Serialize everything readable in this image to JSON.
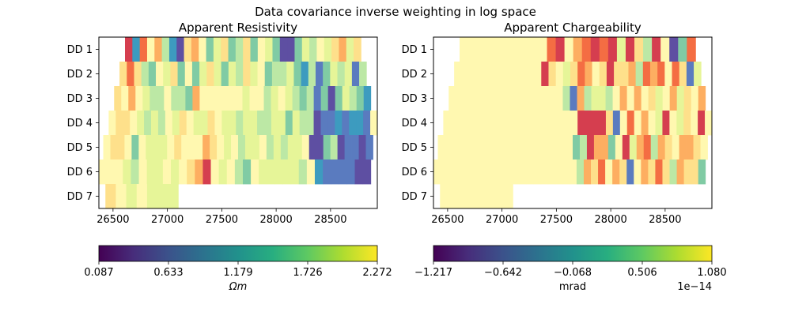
{
  "figure": {
    "title": "Data covariance inverse weighting in log space"
  },
  "chart_data": [
    {
      "type": "heatmap",
      "title": "Apparent Resistivity",
      "xlabel": "",
      "ylabel": "",
      "xlim": [
        26370,
        28930
      ],
      "x_ticks": [
        26500,
        27000,
        27500,
        28000,
        28500
      ],
      "x_tick_labels": [
        "26500",
        "27000",
        "27500",
        "28000",
        "28500"
      ],
      "y_tick_labels": [
        "DD 1",
        "DD 2",
        "DD 3",
        "DD 4",
        "DD 5",
        "DD 6",
        "DD 7"
      ],
      "grid": false,
      "colormap": "Spectral",
      "rows": [
        {
          "label": "DD 1",
          "x_start": 26610,
          "x_end": 28780,
          "values": [
            1,
            9,
            2,
            5,
            3,
            7,
            9,
            11,
            4,
            3,
            5,
            8,
            6,
            4,
            8,
            7,
            4,
            8,
            5,
            6,
            8,
            11,
            11,
            8,
            6,
            7,
            5,
            6,
            4,
            3,
            6,
            4
          ]
        },
        {
          "label": "DD 2",
          "x_start": 26560,
          "x_end": 28830,
          "values": [
            4,
            2,
            4,
            7,
            8,
            5,
            6,
            4,
            8,
            5,
            8,
            6,
            4,
            6,
            8,
            6,
            7,
            4,
            6,
            5,
            8,
            7,
            7,
            6,
            8,
            9,
            7,
            10,
            8,
            6,
            7,
            6,
            10,
            7
          ]
        },
        {
          "label": "DD 3",
          "x_start": 26510,
          "x_end": 28870,
          "values": [
            4,
            5,
            3,
            5,
            6,
            7,
            7,
            5,
            7,
            7,
            8,
            3,
            5,
            5,
            5,
            5,
            5,
            5,
            6,
            5,
            5,
            7,
            6,
            5,
            6,
            7,
            8,
            7,
            10,
            8,
            11,
            8,
            6,
            7,
            8,
            9
          ]
        },
        {
          "label": "DD 4",
          "x_start": 26460,
          "x_end": 28930,
          "values": [
            5,
            4,
            4,
            5,
            6,
            7,
            6,
            7,
            5,
            6,
            4,
            5,
            6,
            6,
            4,
            5,
            6,
            6,
            7,
            6,
            6,
            7,
            7,
            6,
            6,
            8,
            6,
            7,
            7,
            11,
            10,
            10,
            9,
            10,
            9,
            9,
            10,
            12
          ]
        },
        {
          "label": "DD 5",
          "x_start": 26410,
          "x_end": 28890,
          "values": [
            5,
            4,
            4,
            5,
            8,
            5,
            6,
            6,
            6,
            5,
            4,
            5,
            5,
            5,
            3,
            4,
            5,
            6,
            5,
            7,
            6,
            6,
            5,
            7,
            6,
            7,
            6,
            6,
            5,
            11,
            11,
            8,
            7,
            11,
            10,
            10,
            11,
            10
          ]
        },
        {
          "label": "DD 6",
          "x_start": 26370,
          "x_end": 28870,
          "values": [
            5,
            5,
            5,
            6,
            7,
            5,
            6,
            6,
            5,
            6,
            5,
            4,
            3,
            1,
            5,
            6,
            5,
            7,
            8,
            5,
            6,
            6,
            6,
            6,
            6,
            7,
            5,
            9,
            10,
            10,
            10,
            10,
            11,
            11
          ]
        },
        {
          "label": "DD 7",
          "x_start": 26430,
          "x_end": 27100,
          "values": [
            4,
            5,
            6,
            5,
            6,
            6,
            6
          ]
        }
      ]
    },
    {
      "type": "heatmap",
      "title": "Apparent Chargeability",
      "xlabel": "",
      "ylabel": "",
      "xlim": [
        26370,
        28930
      ],
      "x_ticks": [
        26500,
        27000,
        27500,
        28000,
        28500
      ],
      "x_tick_labels": [
        "26500",
        "27000",
        "27500",
        "28000",
        "28500"
      ],
      "y_tick_labels": [
        "DD 1",
        "DD 2",
        "DD 3",
        "DD 4",
        "DD 5",
        "DD 6",
        "DD 7"
      ],
      "grid": false,
      "colormap": "Spectral",
      "rows": [
        {
          "label": "DD 1",
          "x_start": 26610,
          "x_end": 28780,
          "values": [
            5,
            5,
            5,
            5,
            5,
            5,
            5,
            5,
            5,
            5,
            2,
            1,
            5,
            3,
            2,
            1,
            2,
            1,
            6,
            1,
            4,
            7,
            1,
            5,
            11,
            8,
            2
          ]
        },
        {
          "label": "DD 2",
          "x_start": 26560,
          "x_end": 28830,
          "values": [
            5,
            5,
            5,
            5,
            5,
            5,
            5,
            5,
            5,
            5,
            5,
            5,
            1,
            4,
            5,
            6,
            4,
            2,
            3,
            5,
            4,
            1,
            4,
            4,
            3,
            7,
            2,
            3,
            2,
            5,
            2,
            4,
            10,
            6
          ]
        },
        {
          "label": "DD 3",
          "x_start": 26510,
          "x_end": 28870,
          "values": [
            5,
            5,
            5,
            5,
            5,
            5,
            5,
            5,
            5,
            5,
            5,
            5,
            5,
            5,
            5,
            5,
            7,
            10,
            3,
            7,
            6,
            6,
            7,
            5,
            3,
            5,
            3,
            5,
            4,
            6,
            5,
            3,
            6,
            4,
            5,
            3
          ]
        },
        {
          "label": "DD 4",
          "x_start": 26460,
          "x_end": 28930,
          "values": [
            5,
            5,
            5,
            5,
            5,
            5,
            5,
            5,
            5,
            5,
            5,
            5,
            5,
            5,
            5,
            5,
            5,
            5,
            5,
            1,
            1,
            1,
            1,
            4,
            10,
            5,
            2,
            5,
            3,
            5,
            6,
            1,
            5,
            6,
            4,
            5,
            1,
            5
          ]
        },
        {
          "label": "DD 5",
          "x_start": 26410,
          "x_end": 28890,
          "values": [
            5,
            5,
            5,
            5,
            5,
            5,
            5,
            5,
            5,
            5,
            5,
            5,
            5,
            5,
            5,
            5,
            5,
            5,
            5,
            8,
            7,
            1,
            3,
            3,
            8,
            5,
            1,
            6,
            3,
            2,
            7,
            3,
            4,
            5,
            3,
            3,
            4,
            5
          ]
        },
        {
          "label": "DD 6",
          "x_start": 26370,
          "x_end": 28870,
          "values": [
            5,
            5,
            5,
            5,
            5,
            5,
            5,
            5,
            5,
            5,
            5,
            5,
            5,
            5,
            5,
            5,
            5,
            5,
            5,
            5,
            7,
            3,
            4,
            2,
            5,
            3,
            4,
            10,
            5,
            3,
            4,
            2,
            4,
            7,
            3,
            4,
            4,
            8
          ]
        },
        {
          "label": "DD 7",
          "x_start": 26430,
          "x_end": 27100,
          "values": [
            5,
            5,
            5,
            5,
            5,
            5,
            5
          ]
        }
      ]
    }
  ],
  "colorbars": [
    {
      "colormap": "viridis",
      "tick_labels": [
        "0.087",
        "0.633",
        "1.179",
        "1.726",
        "2.272"
      ],
      "label": "Ωm",
      "offset_text": ""
    },
    {
      "colormap": "viridis",
      "tick_labels": [
        "−1.217",
        "−0.642",
        "−0.068",
        "0.506",
        "1.080"
      ],
      "label": "mrad",
      "offset_text": "1e−14"
    }
  ]
}
